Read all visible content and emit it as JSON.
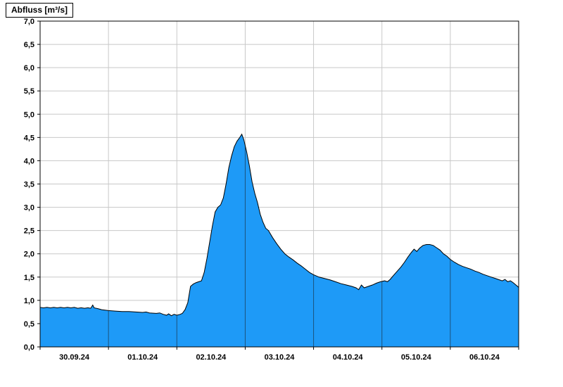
{
  "title": "Abfluss [m³/s]",
  "colors": {
    "background": "#FFFFFF",
    "area_fill": "#1E9AF7",
    "area_outline": "#000000",
    "grid": "#C8C8C8",
    "day_line": "#1A1A1A",
    "axis": "#000000",
    "label": "#000000"
  },
  "chart_data": {
    "type": "area",
    "title": "Abfluss [m³/s]",
    "ylabel": "Abfluss [m³/s]",
    "xlabel": "",
    "unit": "m³/s",
    "ylim": [
      0,
      7
    ],
    "y_tick_step": 0.5,
    "y_tick_labels": [
      "0,0",
      "0,5",
      "1,0",
      "1,5",
      "2,0",
      "2,5",
      "3,0",
      "3,5",
      "4,0",
      "4,5",
      "5,0",
      "5,5",
      "6,0",
      "6,5",
      "7,0"
    ],
    "x_span_days": 7,
    "x_day_labels": [
      "30.09.24",
      "01.10.24",
      "02.10.24",
      "03.10.24",
      "04.10.24",
      "05.10.24",
      "06.10.24"
    ],
    "x_day_boundaries": [
      1,
      2,
      3,
      4,
      5,
      6
    ],
    "grid": true,
    "legend_position": "none",
    "series": [
      {
        "name": "Abfluss",
        "unit": "m³/s",
        "points": [
          [
            0.0,
            0.85
          ],
          [
            0.05,
            0.84
          ],
          [
            0.1,
            0.85
          ],
          [
            0.15,
            0.84
          ],
          [
            0.2,
            0.85
          ],
          [
            0.25,
            0.84
          ],
          [
            0.3,
            0.85
          ],
          [
            0.35,
            0.84
          ],
          [
            0.4,
            0.85
          ],
          [
            0.45,
            0.84
          ],
          [
            0.5,
            0.85
          ],
          [
            0.55,
            0.83
          ],
          [
            0.6,
            0.84
          ],
          [
            0.65,
            0.83
          ],
          [
            0.7,
            0.84
          ],
          [
            0.74,
            0.83
          ],
          [
            0.77,
            0.9
          ],
          [
            0.79,
            0.84
          ],
          [
            0.85,
            0.82
          ],
          [
            0.9,
            0.8
          ],
          [
            0.95,
            0.79
          ],
          [
            1.0,
            0.78
          ],
          [
            1.1,
            0.77
          ],
          [
            1.2,
            0.76
          ],
          [
            1.3,
            0.76
          ],
          [
            1.4,
            0.75
          ],
          [
            1.5,
            0.74
          ],
          [
            1.55,
            0.75
          ],
          [
            1.6,
            0.73
          ],
          [
            1.7,
            0.72
          ],
          [
            1.75,
            0.73
          ],
          [
            1.8,
            0.7
          ],
          [
            1.85,
            0.68
          ],
          [
            1.88,
            0.71
          ],
          [
            1.92,
            0.67
          ],
          [
            1.96,
            0.7
          ],
          [
            2.0,
            0.68
          ],
          [
            2.05,
            0.7
          ],
          [
            2.08,
            0.72
          ],
          [
            2.12,
            0.8
          ],
          [
            2.16,
            0.95
          ],
          [
            2.2,
            1.3
          ],
          [
            2.24,
            1.35
          ],
          [
            2.28,
            1.38
          ],
          [
            2.32,
            1.4
          ],
          [
            2.36,
            1.42
          ],
          [
            2.4,
            1.6
          ],
          [
            2.44,
            1.9
          ],
          [
            2.48,
            2.25
          ],
          [
            2.52,
            2.6
          ],
          [
            2.56,
            2.9
          ],
          [
            2.6,
            3.0
          ],
          [
            2.64,
            3.05
          ],
          [
            2.68,
            3.2
          ],
          [
            2.72,
            3.5
          ],
          [
            2.76,
            3.85
          ],
          [
            2.8,
            4.1
          ],
          [
            2.84,
            4.3
          ],
          [
            2.88,
            4.42
          ],
          [
            2.92,
            4.5
          ],
          [
            2.95,
            4.57
          ],
          [
            2.98,
            4.45
          ],
          [
            3.02,
            4.2
          ],
          [
            3.06,
            3.9
          ],
          [
            3.1,
            3.55
          ],
          [
            3.14,
            3.3
          ],
          [
            3.18,
            3.1
          ],
          [
            3.22,
            2.85
          ],
          [
            3.26,
            2.68
          ],
          [
            3.3,
            2.55
          ],
          [
            3.34,
            2.5
          ],
          [
            3.4,
            2.35
          ],
          [
            3.46,
            2.22
          ],
          [
            3.52,
            2.1
          ],
          [
            3.58,
            2.0
          ],
          [
            3.64,
            1.93
          ],
          [
            3.7,
            1.87
          ],
          [
            3.76,
            1.8
          ],
          [
            3.82,
            1.74
          ],
          [
            3.88,
            1.67
          ],
          [
            3.94,
            1.6
          ],
          [
            4.0,
            1.55
          ],
          [
            4.08,
            1.5
          ],
          [
            4.16,
            1.47
          ],
          [
            4.24,
            1.44
          ],
          [
            4.32,
            1.4
          ],
          [
            4.4,
            1.36
          ],
          [
            4.48,
            1.33
          ],
          [
            4.56,
            1.3
          ],
          [
            4.62,
            1.27
          ],
          [
            4.66,
            1.23
          ],
          [
            4.7,
            1.33
          ],
          [
            4.74,
            1.27
          ],
          [
            4.8,
            1.3
          ],
          [
            4.86,
            1.33
          ],
          [
            4.92,
            1.37
          ],
          [
            4.98,
            1.4
          ],
          [
            5.04,
            1.42
          ],
          [
            5.08,
            1.4
          ],
          [
            5.12,
            1.45
          ],
          [
            5.16,
            1.52
          ],
          [
            5.22,
            1.62
          ],
          [
            5.28,
            1.72
          ],
          [
            5.33,
            1.82
          ],
          [
            5.38,
            1.93
          ],
          [
            5.43,
            2.03
          ],
          [
            5.47,
            2.1
          ],
          [
            5.51,
            2.05
          ],
          [
            5.55,
            2.12
          ],
          [
            5.6,
            2.18
          ],
          [
            5.65,
            2.2
          ],
          [
            5.7,
            2.2
          ],
          [
            5.75,
            2.18
          ],
          [
            5.8,
            2.13
          ],
          [
            5.85,
            2.08
          ],
          [
            5.9,
            2.0
          ],
          [
            5.95,
            1.95
          ],
          [
            6.0,
            1.88
          ],
          [
            6.06,
            1.82
          ],
          [
            6.12,
            1.77
          ],
          [
            6.18,
            1.73
          ],
          [
            6.24,
            1.7
          ],
          [
            6.3,
            1.67
          ],
          [
            6.36,
            1.63
          ],
          [
            6.42,
            1.6
          ],
          [
            6.48,
            1.56
          ],
          [
            6.54,
            1.53
          ],
          [
            6.6,
            1.5
          ],
          [
            6.66,
            1.47
          ],
          [
            6.72,
            1.44
          ],
          [
            6.76,
            1.42
          ],
          [
            6.8,
            1.45
          ],
          [
            6.84,
            1.4
          ],
          [
            6.88,
            1.42
          ],
          [
            6.92,
            1.38
          ],
          [
            6.96,
            1.33
          ],
          [
            7.0,
            1.28
          ]
        ]
      }
    ]
  }
}
